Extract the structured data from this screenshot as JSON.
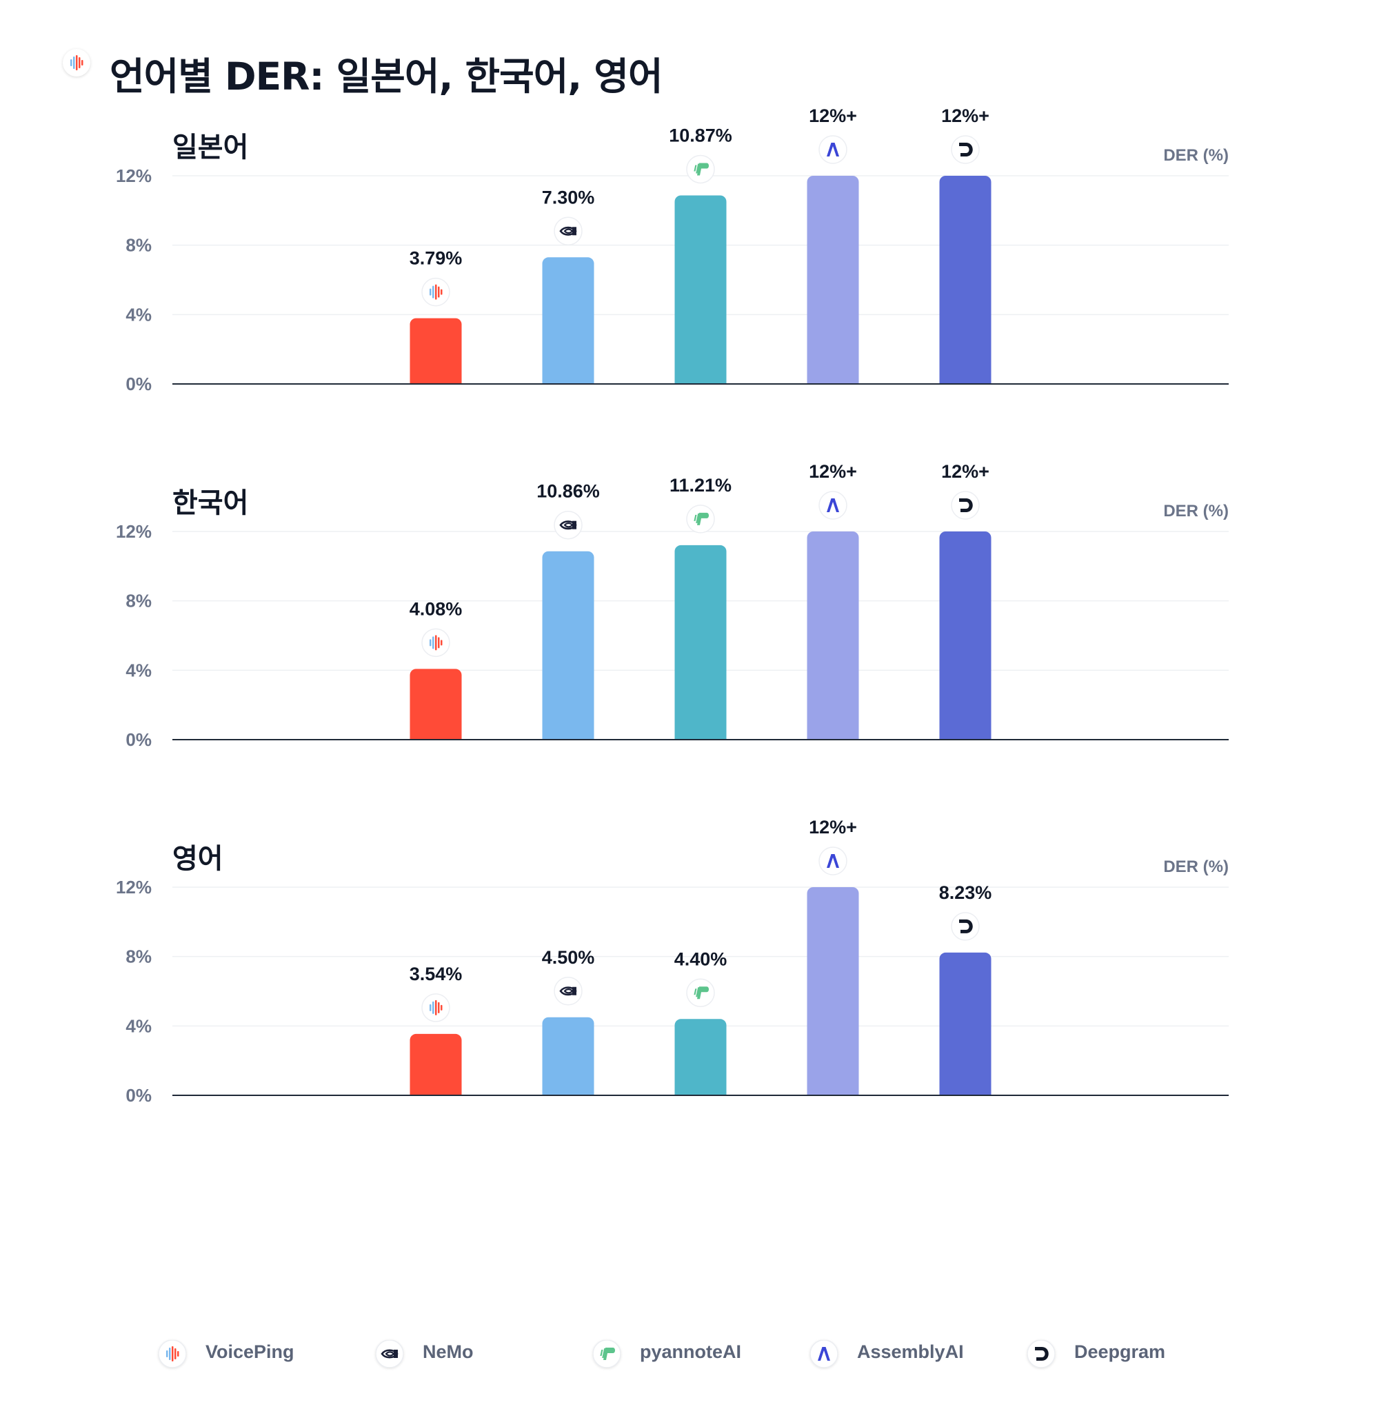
{
  "title": "언어별 DER: 일본어, 한국어, 영어",
  "icons": {
    "VoicePing": "voiceping-logo-icon",
    "NeMo": "nvidia-logo-icon",
    "pyannoteAI": "pyannote-logo-icon",
    "AssemblyAI": "assemblyai-logo-icon",
    "Deepgram": "deepgram-logo-icon"
  },
  "legend": [
    {
      "name": "VoicePing",
      "color": "#ff4b37"
    },
    {
      "name": "NeMo",
      "color": "#7ab8ee"
    },
    {
      "name": "pyannoteAI",
      "color": "#4fb6c9"
    },
    {
      "name": "AssemblyAI",
      "color": "#9aa3e9"
    },
    {
      "name": "Deepgram",
      "color": "#5b6bd5"
    }
  ],
  "chart_data": [
    {
      "type": "bar",
      "title": "일본어",
      "ylabel": "DER (%)",
      "ylim": [
        0,
        12
      ],
      "yticks": [
        "0%",
        "4%",
        "8%",
        "12%"
      ],
      "categories": [
        "VoicePing",
        "NeMo",
        "pyannoteAI",
        "AssemblyAI",
        "Deepgram"
      ],
      "values": [
        3.79,
        7.3,
        10.87,
        12,
        12
      ],
      "data_labels": [
        "3.79%",
        "7.30%",
        "10.87%",
        "12%+",
        "12%+"
      ]
    },
    {
      "type": "bar",
      "title": "한국어",
      "ylabel": "DER (%)",
      "ylim": [
        0,
        12
      ],
      "yticks": [
        "0%",
        "4%",
        "8%",
        "12%"
      ],
      "categories": [
        "VoicePing",
        "NeMo",
        "pyannoteAI",
        "AssemblyAI",
        "Deepgram"
      ],
      "values": [
        4.08,
        10.86,
        11.21,
        12,
        12
      ],
      "data_labels": [
        "4.08%",
        "10.86%",
        "11.21%",
        "12%+",
        "12%+"
      ]
    },
    {
      "type": "bar",
      "title": "영어",
      "ylabel": "DER (%)",
      "ylim": [
        0,
        12
      ],
      "yticks": [
        "0%",
        "4%",
        "8%",
        "12%"
      ],
      "categories": [
        "VoicePing",
        "NeMo",
        "pyannoteAI",
        "AssemblyAI",
        "Deepgram"
      ],
      "values": [
        3.54,
        4.5,
        4.4,
        12,
        8.23
      ],
      "data_labels": [
        "3.54%",
        "4.50%",
        "4.40%",
        "12%+",
        "8.23%"
      ]
    }
  ]
}
